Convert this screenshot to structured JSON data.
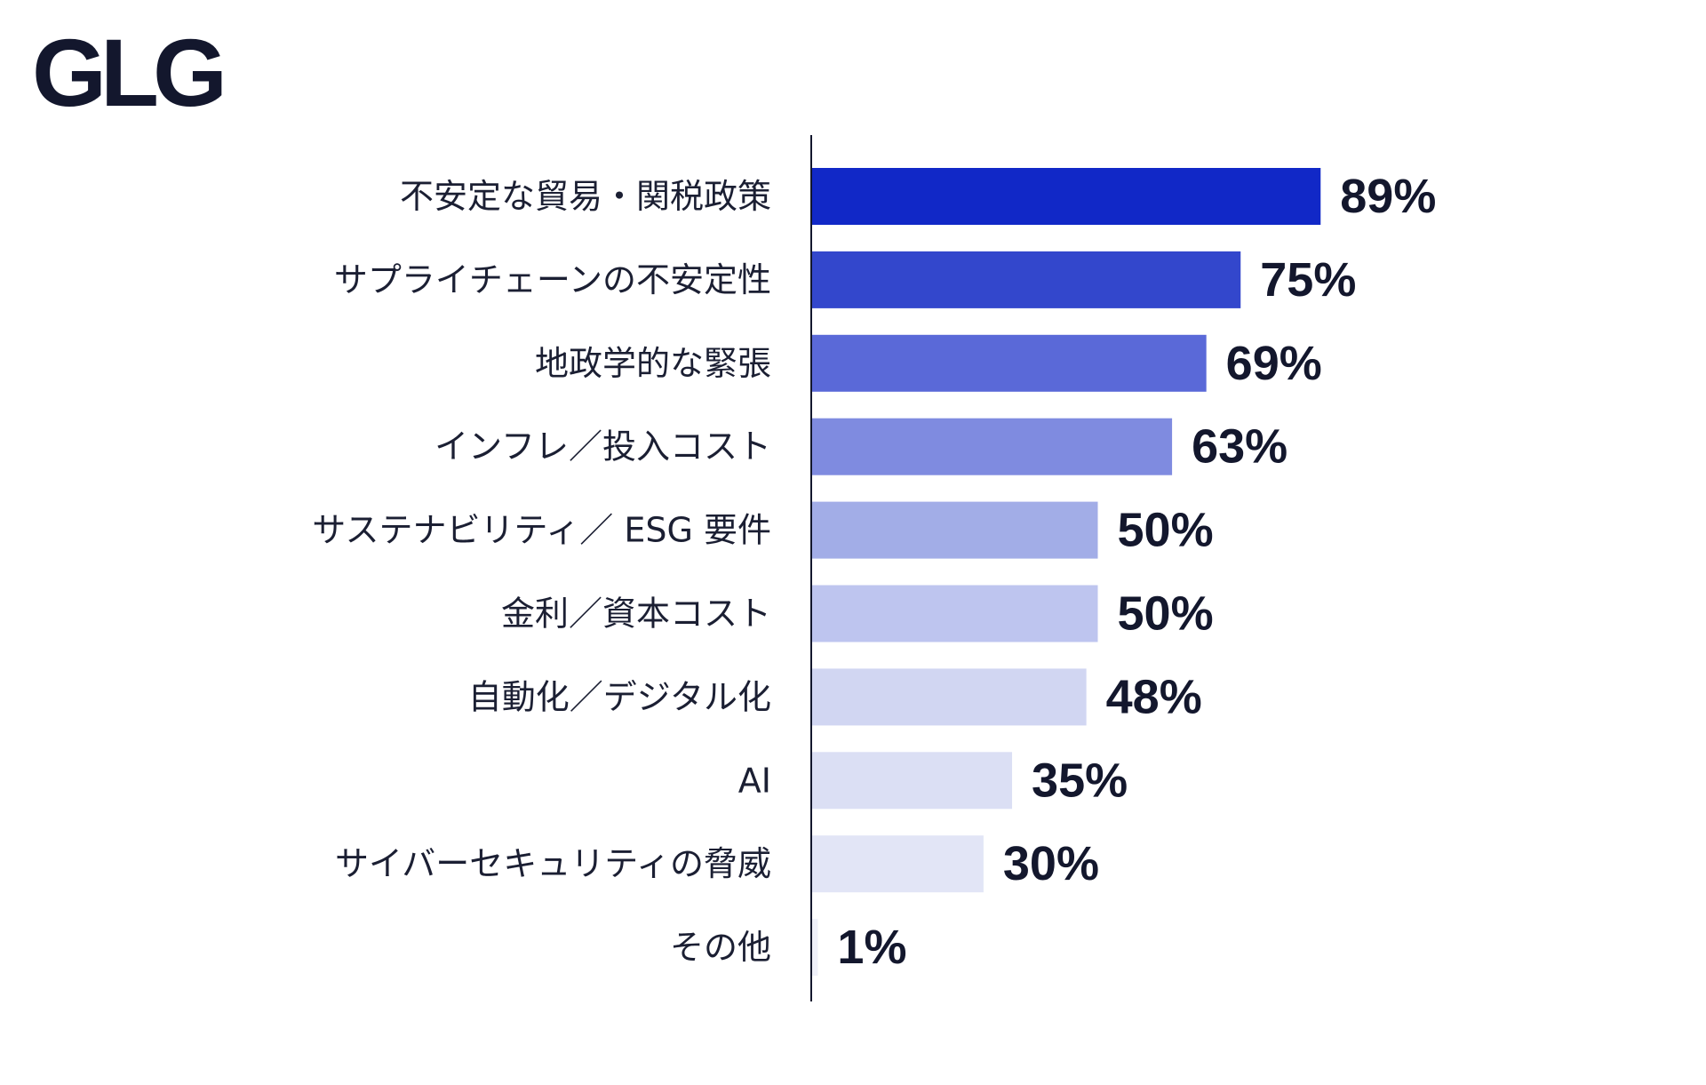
{
  "logo": {
    "text": "GLG"
  },
  "chart_data": {
    "type": "bar",
    "orientation": "horizontal",
    "categories": [
      "不安定な貿易・関税政策",
      "サプライチェーンの不安定性",
      "地政学的な緊張",
      "インフレ／投入コスト",
      "サステナビリティ／ ESG 要件",
      "金利／資本コスト",
      "自動化／デジタル化",
      "AI",
      "サイバーセキュリティの脅威",
      "その他"
    ],
    "values": [
      89,
      75,
      69,
      63,
      50,
      50,
      48,
      35,
      30,
      1
    ],
    "value_labels": [
      "89%",
      "75%",
      "69%",
      "63%",
      "50%",
      "50%",
      "48%",
      "35%",
      "30%",
      "1%"
    ],
    "bar_colors": [
      "#1128c7",
      "#3347cc",
      "#5a69d8",
      "#7f8be0",
      "#a2ade7",
      "#bec5ef",
      "#d1d6f2",
      "#dbdff4",
      "#e2e5f6",
      "#eff0f9"
    ],
    "xlim": [
      0,
      100
    ],
    "grid": false,
    "legend": "none",
    "title": "",
    "xlabel": "",
    "ylabel": ""
  }
}
